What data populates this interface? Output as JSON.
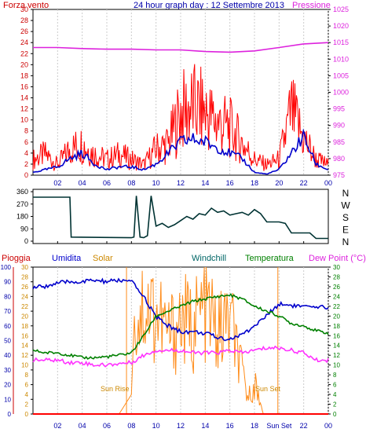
{
  "colors": {
    "wind": "#ff0000",
    "wind_avg": "#0000cc",
    "pressure": "#dd22dd",
    "direction": "#003333",
    "rain": "#ff0000",
    "humidity": "#0000cc",
    "solar": "#ff8c1a",
    "windchill": "#006666",
    "temperature": "#008000",
    "dewpoint": "#ff33ff",
    "axis_left_red": "#cc0000",
    "axis_blue": "#0000aa",
    "axis_green": "#008000",
    "label_orange": "#cc8800"
  },
  "header": {
    "title": "24 hour graph day : 12 Settembre 2013",
    "left_label": "Forza vento",
    "right_label": "Pressione"
  },
  "wind_panel": {
    "left_ticks": [
      "30",
      "28",
      "26",
      "24",
      "22",
      "20",
      "18",
      "16",
      "14",
      "12",
      "10",
      "8",
      "6",
      "4",
      "2",
      "0"
    ],
    "right_ticks": [
      "1025",
      "1020",
      "1015",
      "1010",
      "1005",
      "1000",
      "995",
      "990",
      "985",
      "980",
      "975"
    ],
    "x_ticks": [
      "02",
      "04",
      "06",
      "08",
      "10",
      "12",
      "14",
      "16",
      "18",
      "20",
      "22",
      "00"
    ]
  },
  "direction_panel": {
    "left_ticks": [
      "360",
      "270",
      "180",
      "90",
      "0"
    ],
    "compass": [
      "N",
      "W",
      "S",
      "E",
      "N"
    ],
    "x_ticks": [
      "02",
      "04",
      "06",
      "08",
      "10",
      "12",
      "14",
      "16",
      "18",
      "20",
      "22",
      "00"
    ]
  },
  "bottom_panel": {
    "legend": {
      "rain": "Pioggia",
      "humidity": "Umidita",
      "solar": "Solar",
      "windchill": "Windchill",
      "temperature": "Temperatura",
      "dewpoint": "Dew Point (°C)"
    },
    "left_ticks": [
      "100",
      "90",
      "80",
      "70",
      "60",
      "50",
      "40",
      "30",
      "20",
      "10",
      "0"
    ],
    "solar_ticks": [
      "30",
      "28",
      "26",
      "24",
      "22",
      "20",
      "18",
      "16",
      "14",
      "12",
      "10",
      "8",
      "6",
      "4",
      "2",
      "0"
    ],
    "right_ticks": [
      "30",
      "28",
      "26",
      "24",
      "22",
      "20",
      "18",
      "16",
      "14",
      "12",
      "10",
      "8",
      "6",
      "4",
      "2",
      "0"
    ],
    "x_ticks": [
      "02",
      "04",
      "06",
      "08",
      "10",
      "12",
      "14",
      "16",
      "18",
      "20",
      "22",
      "00"
    ],
    "sun_rise_label": "Sun Rise",
    "sun_set_label": "Sun Set",
    "sun_set_axis_label": "Sun Set"
  },
  "chart_data": [
    {
      "type": "line",
      "title": "24 hour graph day : 12 Settembre 2013",
      "ylabel": "Forza vento",
      "y2label": "Pressione",
      "ylim": [
        0,
        30
      ],
      "y2lim": [
        975,
        1025
      ],
      "x_unit": "hour",
      "series": [
        {
          "name": "Forza vento",
          "x": [
            0,
            1,
            2,
            3,
            4,
            5,
            6,
            7,
            8,
            9,
            10,
            11,
            12,
            13,
            14,
            15,
            16,
            17,
            18,
            19,
            20,
            21,
            22,
            23,
            24
          ],
          "values": [
            3,
            4,
            2,
            5,
            6,
            4,
            3,
            4,
            3,
            2,
            5,
            6,
            12,
            13,
            12,
            10,
            9,
            6,
            3,
            2,
            3,
            12,
            7,
            3,
            2
          ]
        },
        {
          "name": "",
          "x": [
            0,
            1,
            2,
            3,
            4,
            5,
            6,
            7,
            8,
            9,
            10,
            11,
            12,
            13,
            14,
            15,
            16,
            17,
            18,
            19,
            20,
            21,
            22,
            23,
            24
          ],
          "values": [
            0.5,
            1,
            1.5,
            3,
            4,
            2,
            1,
            1.5,
            1.5,
            1,
            2,
            4,
            6,
            6.5,
            6,
            5,
            4,
            3,
            0.5,
            0.2,
            1,
            4,
            7,
            2,
            1
          ]
        },
        {
          "name": "Pressione",
          "x": [
            0,
            2,
            4,
            6,
            8,
            10,
            12,
            14,
            16,
            18,
            20,
            22,
            24
          ],
          "values": [
            1013.5,
            1013.5,
            1013.2,
            1013,
            1013,
            1012.8,
            1012.8,
            1012.3,
            1012.1,
            1012.5,
            1013.5,
            1014.6,
            1015
          ]
        }
      ]
    },
    {
      "type": "line",
      "ylim": [
        0,
        360
      ],
      "ylabel": "",
      "x_unit": "hour",
      "series": [
        {
          "name": "",
          "x": [
            0,
            0.5,
            3,
            3.1,
            8,
            8.2,
            8.4,
            8.7,
            9,
            9.3,
            9.6,
            10,
            10.5,
            11,
            11.5,
            12,
            12.5,
            13,
            13.5,
            14,
            14.5,
            15,
            15.5,
            16,
            16.5,
            17,
            17.5,
            18,
            18.5,
            19,
            19.5,
            20,
            20.5,
            21,
            21.5,
            22,
            22.5,
            23,
            23.5,
            24
          ],
          "values": [
            320,
            320,
            320,
            30,
            25,
            30,
            330,
            30,
            25,
            40,
            330,
            110,
            130,
            100,
            120,
            150,
            180,
            160,
            200,
            190,
            240,
            210,
            220,
            190,
            200,
            210,
            190,
            230,
            200,
            140,
            140,
            140,
            130,
            60,
            60,
            60,
            60,
            20,
            20,
            20
          ]
        }
      ]
    },
    {
      "type": "line",
      "ylabel": "Umidita",
      "ylim": [
        0,
        100
      ],
      "y2label": "Dew Point (°C)",
      "y2lim": [
        0,
        30
      ],
      "x_unit": "hour",
      "series": [
        {
          "name": "Umidita",
          "x": [
            0,
            1,
            2,
            3,
            4,
            5,
            6,
            7,
            8,
            9,
            10,
            11,
            12,
            13,
            14,
            15,
            16,
            17,
            18,
            19,
            20,
            21,
            22,
            23,
            24
          ],
          "values": [
            86,
            87,
            89,
            90,
            90,
            91,
            90,
            91,
            90,
            80,
            66,
            60,
            56,
            56,
            55,
            52,
            51,
            54,
            60,
            67,
            75,
            74,
            73,
            72,
            73
          ]
        },
        {
          "name": "Solar",
          "x": [
            0,
            6,
            7,
            7.5,
            8,
            8.3,
            9,
            10,
            11,
            12,
            13,
            14,
            15,
            16,
            17,
            17.5,
            18,
            18.7,
            24
          ],
          "values": [
            0,
            0,
            0,
            2,
            4,
            24,
            28,
            26,
            20,
            24,
            22,
            28,
            20,
            24,
            10,
            4,
            8,
            0,
            0
          ]
        },
        {
          "name": "Temperatura",
          "x": [
            0,
            1,
            2,
            3,
            4,
            5,
            6,
            7,
            8,
            9,
            10,
            11,
            12,
            13,
            14,
            15,
            16,
            17,
            18,
            19,
            20,
            21,
            22,
            23,
            24
          ],
          "values": [
            13,
            12.5,
            12.5,
            12,
            11.5,
            11.5,
            11.7,
            12,
            12.5,
            16,
            20,
            21,
            22,
            23,
            23.5,
            24,
            24.3,
            23.5,
            22,
            21,
            20,
            18.5,
            18,
            17,
            16.5
          ]
        },
        {
          "name": "Dew Point (°C)",
          "x": [
            0,
            1,
            2,
            3,
            4,
            5,
            6,
            7,
            8,
            9,
            10,
            11,
            12,
            13,
            14,
            15,
            16,
            17,
            18,
            19,
            20,
            21,
            22,
            23,
            24
          ],
          "values": [
            11,
            11,
            11,
            10.5,
            10.5,
            10,
            10,
            10.3,
            10.5,
            12,
            13,
            13,
            13,
            12.5,
            12.5,
            12.5,
            13,
            12.5,
            13,
            13.5,
            13.5,
            13,
            12.5,
            11,
            11
          ]
        },
        {
          "name": "Pioggia",
          "x": [
            0,
            24
          ],
          "values": [
            0,
            0
          ]
        }
      ]
    }
  ]
}
